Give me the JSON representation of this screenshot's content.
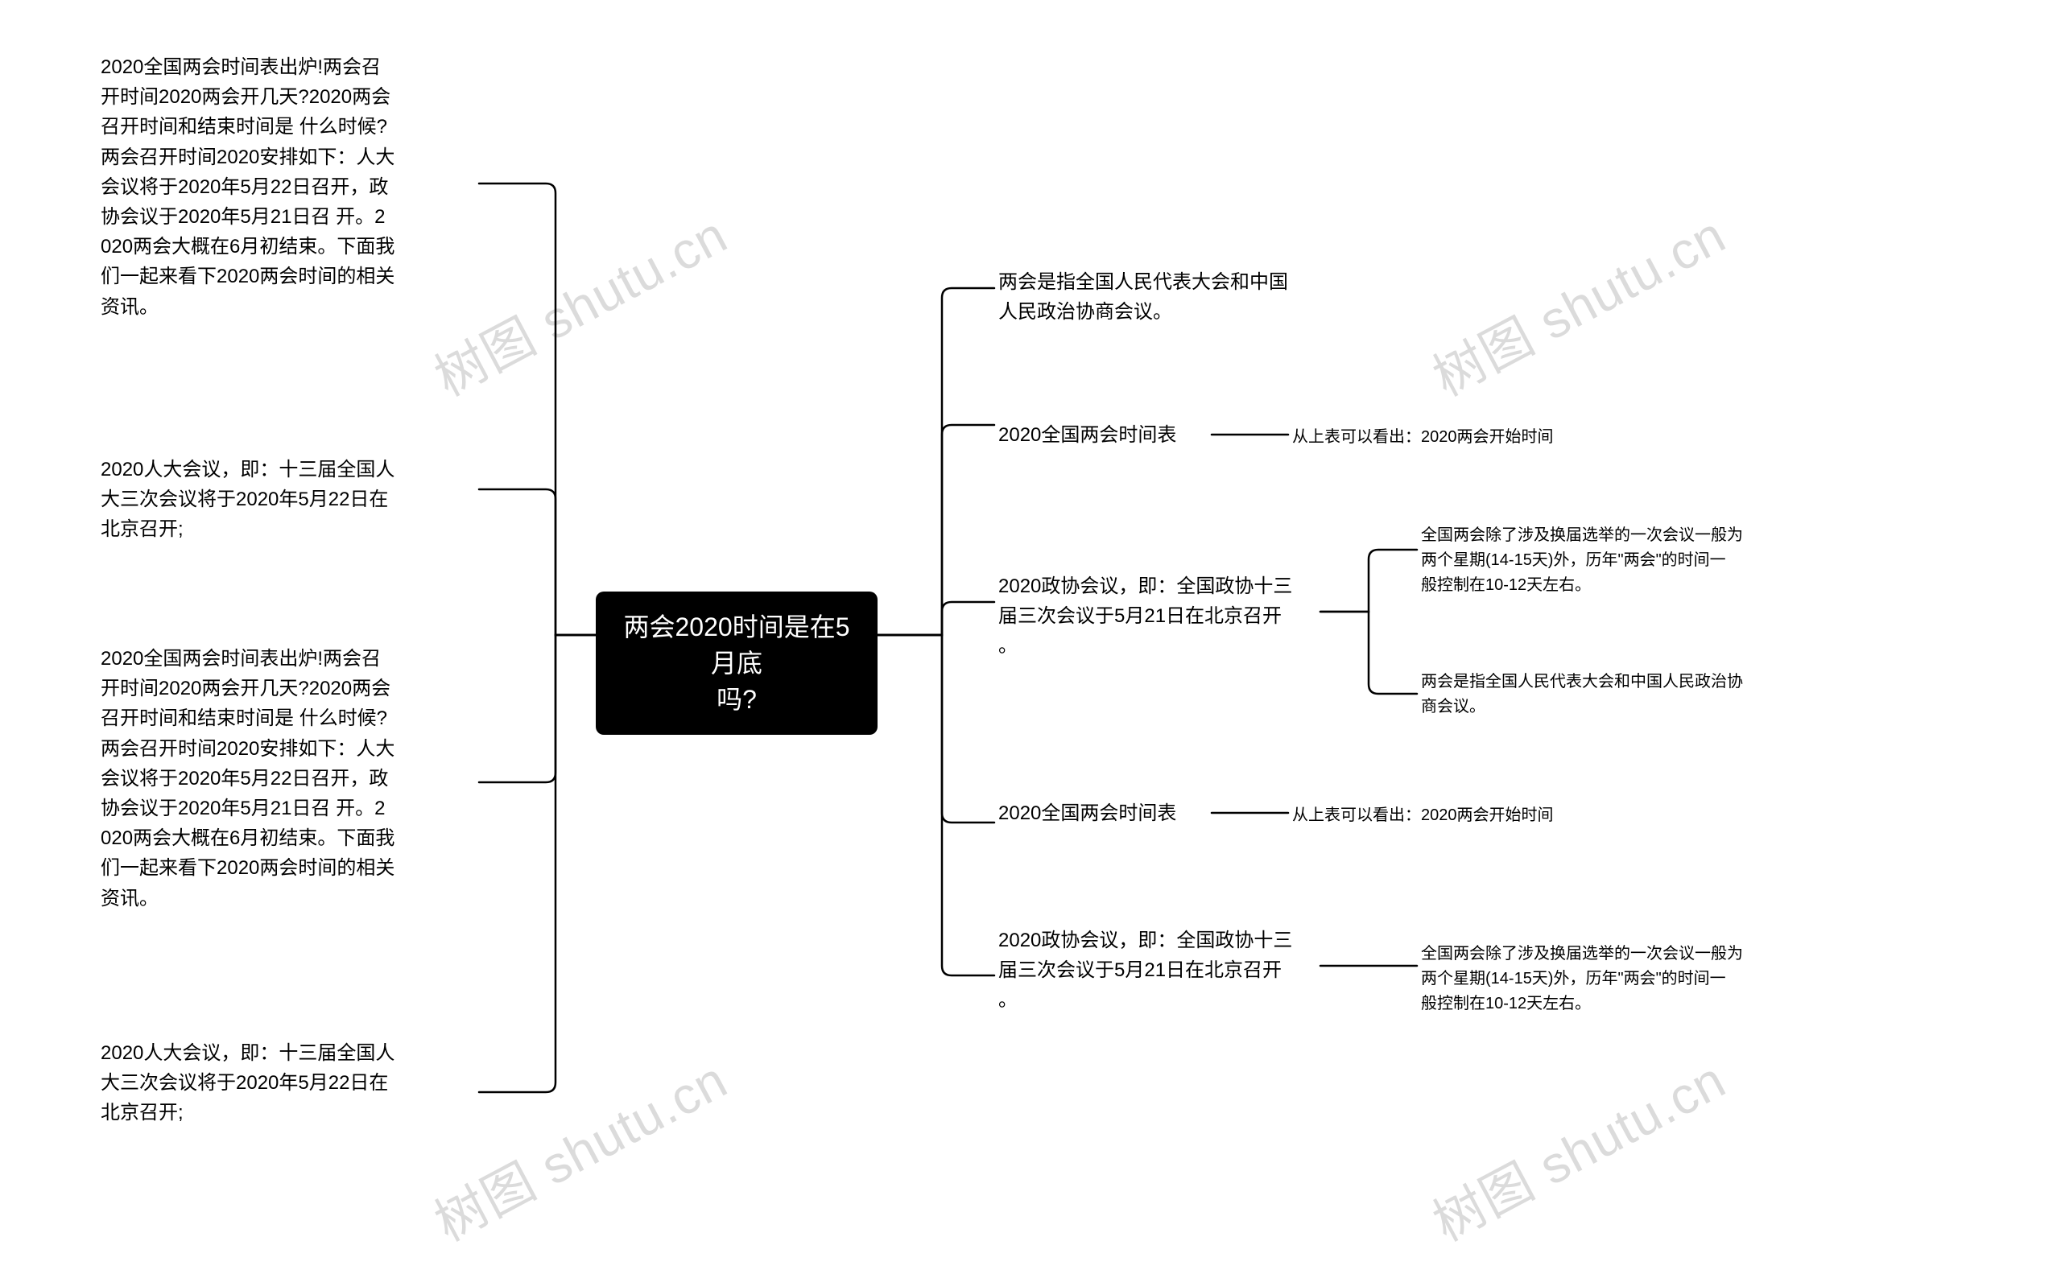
{
  "root": {
    "label": "两会2020时间是在5月底\n吗?"
  },
  "left": [
    {
      "text": "2020全国两会时间表出炉!两会召\n开时间2020两会开几天?2020两会\n召开时间和结束时间是 什么时候?\n两会召开时间2020安排如下：人大\n会议将于2020年5月22日召开，政\n协会议于2020年5月21日召 开。2\n020两会大概在6月初结束。下面我\n们一起来看下2020两会时间的相关\n资讯。"
    },
    {
      "text": "2020人大会议，即：十三届全国人\n大三次会议将于2020年5月22日在\n北京召开;"
    },
    {
      "text": "2020全国两会时间表出炉!两会召\n开时间2020两会开几天?2020两会\n召开时间和结束时间是 什么时候?\n两会召开时间2020安排如下：人大\n会议将于2020年5月22日召开，政\n协会议于2020年5月21日召 开。2\n020两会大概在6月初结束。下面我\n们一起来看下2020两会时间的相关\n资讯。"
    },
    {
      "text": "2020人大会议，即：十三届全国人\n大三次会议将于2020年5月22日在\n北京召开;"
    }
  ],
  "right": [
    {
      "text": "两会是指全国人民代表大会和中国\n人民政治协商会议。",
      "children": []
    },
    {
      "text": "2020全国两会时间表",
      "children": [
        {
          "text": "从上表可以看出：2020两会开始时间"
        }
      ]
    },
    {
      "text": "2020政协会议，即：全国政协十三\n届三次会议于5月21日在北京召开\n。",
      "children": [
        {
          "text": "全国两会除了涉及换届选举的一次会议一般为\n两个星期(14-15天)外，历年\"两会\"的时间一\n般控制在10-12天左右。"
        },
        {
          "text": "两会是指全国人民代表大会和中国人民政治协\n商会议。"
        }
      ]
    },
    {
      "text": "2020全国两会时间表",
      "children": [
        {
          "text": "从上表可以看出：2020两会开始时间"
        }
      ]
    },
    {
      "text": "2020政协会议，即：全国政协十三\n届三次会议于5月21日在北京召开\n。",
      "children": [
        {
          "text": "全国两会除了涉及换届选举的一次会议一般为\n两个星期(14-15天)外，历年\"两会\"的时间一\n般控制在10-12天左右。"
        }
      ]
    }
  ],
  "watermarks": [
    "树图 shutu.cn",
    "树图 shutu.cn",
    "树图 shutu.cn",
    "树图 shutu.cn"
  ],
  "colors": {
    "line": "#000000",
    "bg": "#ffffff",
    "rootBg": "#000000",
    "rootFg": "#ffffff"
  }
}
